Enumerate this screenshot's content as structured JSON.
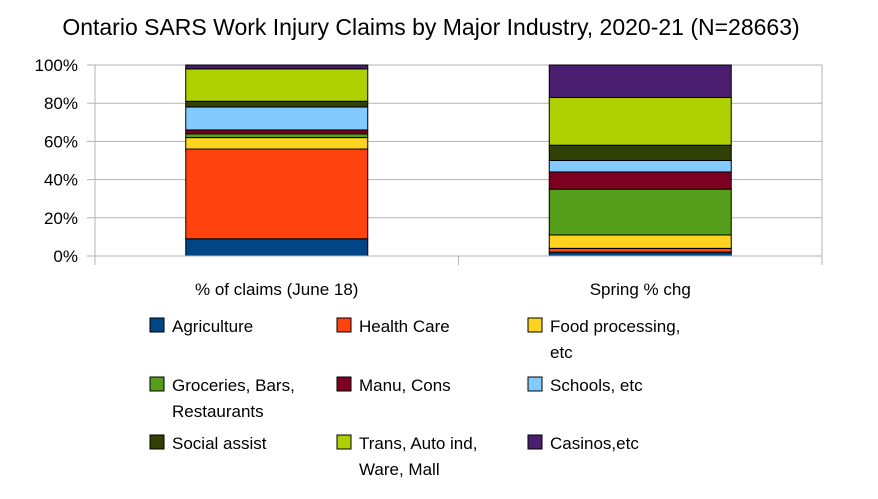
{
  "chart_data": {
    "type": "bar",
    "stacked": true,
    "normalized": true,
    "title": "Ontario SARS Work Injury Claims by Major Industry, 2020-21 (N=28663)",
    "xlabel": "",
    "ylabel": "",
    "ylim": [
      0,
      100
    ],
    "yticks": [
      "0%",
      "20%",
      "40%",
      "60%",
      "80%",
      "100%"
    ],
    "grid": true,
    "legend_position": "bottom",
    "categories": [
      "% of claims (June 18)",
      "Spring % chg"
    ],
    "series": [
      {
        "name": "Agriculture",
        "legend_lines": [
          "Agriculture"
        ],
        "color": "#004586",
        "values": [
          9,
          2
        ]
      },
      {
        "name": "Health Care",
        "legend_lines": [
          "Health Care"
        ],
        "color": "#ff420e",
        "values": [
          47,
          2
        ]
      },
      {
        "name": "Food processing, etc",
        "legend_lines": [
          "Food processing,",
          "etc"
        ],
        "color": "#ffd320",
        "values": [
          6,
          7
        ]
      },
      {
        "name": "Groceries, Bars, Restaurants",
        "legend_lines": [
          "Groceries, Bars,",
          "Restaurants"
        ],
        "color": "#579d1c",
        "values": [
          2,
          24
        ]
      },
      {
        "name": "Manu, Cons",
        "legend_lines": [
          "Manu, Cons"
        ],
        "color": "#7e0021",
        "values": [
          2,
          9
        ]
      },
      {
        "name": "Schools, etc",
        "legend_lines": [
          "Schools, etc"
        ],
        "color": "#83caff",
        "values": [
          12,
          6
        ]
      },
      {
        "name": "Social assist",
        "legend_lines": [
          "Social assist"
        ],
        "color": "#314004",
        "values": [
          3,
          8
        ]
      },
      {
        "name": "Trans, Auto ind, Ware, Mall",
        "legend_lines": [
          "Trans, Auto ind,",
          "Ware, Mall"
        ],
        "color": "#aecf00",
        "values": [
          17,
          25
        ]
      },
      {
        "name": "Casinos,etc",
        "legend_lines": [
          "Casinos,etc"
        ],
        "color": "#4b1f6f",
        "values": [
          2,
          17
        ]
      }
    ]
  }
}
